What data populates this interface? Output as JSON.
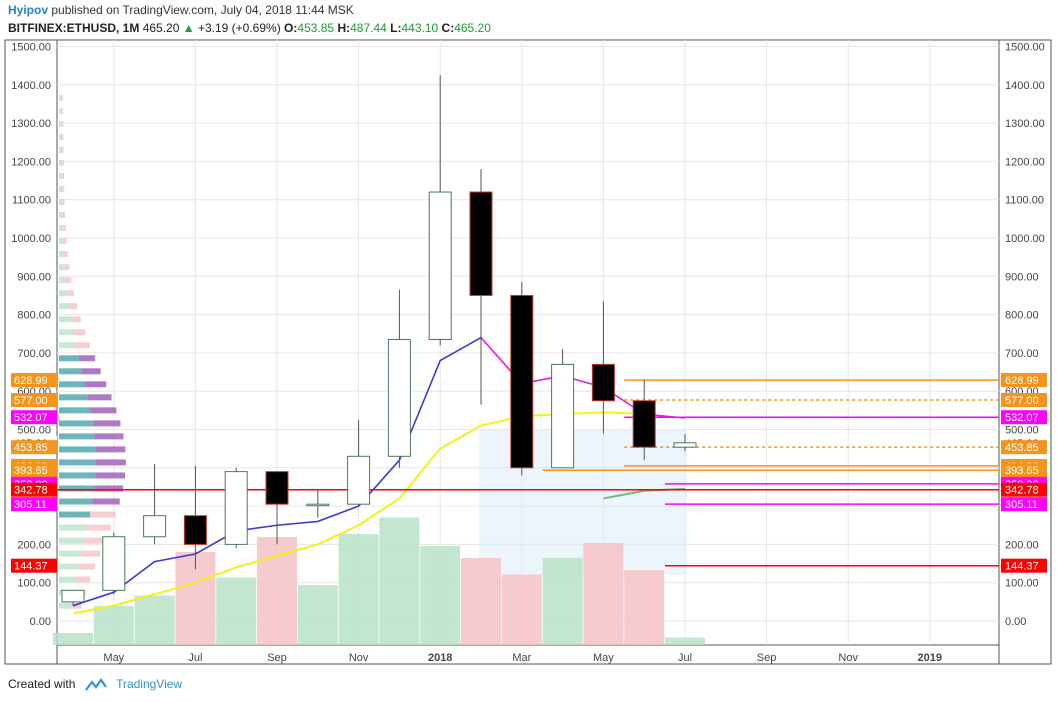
{
  "header": {
    "author": "Hyipov",
    "published_text": "published on TradingView.com, July 04, 2018 11:44 MSK",
    "symbol": "BITFINEX:ETHUSD, 1M",
    "last": "465.20",
    "change": "+3.19 (+0.69%)",
    "o_label": "O:",
    "o_value": "453.85",
    "h_label": "H:",
    "h_value": "487.44",
    "l_label": "L:",
    "l_value": "443.10",
    "c_label": "C:",
    "c_value": "465.20"
  },
  "footer": {
    "created_with": "Created with",
    "brand": "TradingView"
  },
  "colors": {
    "up_body": "#ffffff",
    "down_body": "#000000",
    "wick": "#555555",
    "up_border": "#4a7a5a",
    "down_border": "#c0392b",
    "vol_up": "#b9e2c9",
    "vol_down": "#f6c2c4",
    "ma_blue": "#3a3ad8",
    "ma_magenta": "#e020e0",
    "ma_yellow": "#f2f21a",
    "ma_green": "#7ab86e",
    "ma_lightblue": "#3aa5e0",
    "orange": "#f5941d",
    "magenta": "#ff00ff",
    "red": "#ff0000",
    "grid": "#e6e6e6"
  },
  "chart_data": {
    "type": "candlestick",
    "symbol": "BITFINEX:ETHUSD",
    "interval": "1M",
    "ylim": [
      -80,
      1520
    ],
    "y_ticks": [
      0,
      100,
      200,
      300,
      400,
      500,
      600,
      700,
      800,
      900,
      1000,
      1100,
      1200,
      1300,
      1400,
      1500
    ],
    "x_tick_labels": [
      "May",
      "Jul",
      "Sep",
      "Nov",
      "2018",
      "Mar",
      "May",
      "Jul",
      "Sep",
      "Nov",
      "2019"
    ],
    "x_tick_month_index": [
      1,
      3,
      5,
      7,
      9,
      11,
      13,
      15,
      17,
      19,
      21
    ],
    "bold_ticks": [
      "2018",
      "2019"
    ],
    "grid": true,
    "candles": [
      {
        "m": 0,
        "o": 50,
        "h": 80,
        "l": 40,
        "c": 80
      },
      {
        "m": 1,
        "o": 80,
        "h": 230,
        "l": 70,
        "c": 220
      },
      {
        "m": 2,
        "o": 220,
        "h": 410,
        "l": 200,
        "c": 275
      },
      {
        "m": 3,
        "o": 275,
        "h": 405,
        "l": 135,
        "c": 200
      },
      {
        "m": 4,
        "o": 200,
        "h": 400,
        "l": 190,
        "c": 390
      },
      {
        "m": 5,
        "o": 390,
        "h": 390,
        "l": 200,
        "c": 305
      },
      {
        "m": 6,
        "o": 305,
        "h": 345,
        "l": 270,
        "c": 305
      },
      {
        "m": 7,
        "o": 305,
        "h": 525,
        "l": 300,
        "c": 430
      },
      {
        "m": 8,
        "o": 430,
        "h": 865,
        "l": 400,
        "c": 735
      },
      {
        "m": 9,
        "o": 735,
        "h": 1425,
        "l": 720,
        "c": 1120
      },
      {
        "m": 10,
        "o": 1120,
        "h": 1180,
        "l": 565,
        "c": 850
      },
      {
        "m": 11,
        "o": 850,
        "h": 885,
        "l": 380,
        "c": 400
      },
      {
        "m": 12,
        "o": 400,
        "h": 710,
        "l": 400,
        "c": 670
      },
      {
        "m": 13,
        "o": 670,
        "h": 835,
        "l": 490,
        "c": 575
      },
      {
        "m": 14,
        "o": 575,
        "h": 630,
        "l": 420,
        "c": 453.85
      },
      {
        "m": 15,
        "o": 453.85,
        "h": 487.44,
        "l": 443.1,
        "c": 465.2
      }
    ],
    "volume_heights_norm": [
      0.08,
      0.26,
      0.33,
      0.62,
      0.45,
      0.72,
      0.4,
      0.74,
      0.85,
      0.66,
      0.58,
      0.47,
      0.58,
      0.68,
      0.5,
      0.05
    ],
    "ma_fast": [
      40,
      75,
      155,
      175,
      235,
      250,
      260,
      300,
      420,
      680,
      740,
      620,
      640,
      610,
      540,
      530
    ],
    "ma_slow": [
      20,
      40,
      70,
      100,
      140,
      170,
      200,
      250,
      320,
      450,
      510,
      535,
      540,
      545,
      540,
      null
    ],
    "ma_long": [
      null,
      null,
      null,
      null,
      null,
      null,
      null,
      null,
      null,
      null,
      null,
      null,
      null,
      320,
      340,
      345
    ],
    "levels": [
      {
        "value": 628.99,
        "label": "628.99",
        "color": "orange",
        "style": "solid",
        "from": 14
      },
      {
        "value": 577.0,
        "label": "577.00",
        "color": "orange",
        "style": "dotted",
        "from": 14
      },
      {
        "value": 532.07,
        "label": "532.07",
        "color": "magenta",
        "style": "solid",
        "from": 14
      },
      {
        "value": 465.2,
        "label": "465.20",
        "color": "white",
        "style": "dotted",
        "from": 14
      },
      {
        "value": 453.85,
        "label": "453.85",
        "color": "orange",
        "style": "dotted",
        "from": 14
      },
      {
        "value": 404.99,
        "label": "404.99",
        "color": "orange",
        "style": "solid",
        "from": 14
      },
      {
        "value": 393.65,
        "label": "393.65",
        "color": "orange",
        "style": "solid",
        "from": 12
      },
      {
        "value": 358.0,
        "label": "358.00",
        "color": "magenta",
        "style": "solid",
        "from": 15
      },
      {
        "value": 342.78,
        "label": "342.78",
        "color": "red",
        "style": "solid",
        "from": 0
      },
      {
        "value": 305.11,
        "label": "305.11",
        "color": "magenta",
        "style": "solid",
        "from": 15
      },
      {
        "value": 144.37,
        "label": "144.37",
        "color": "red",
        "style": "solid",
        "from": 15
      }
    ]
  }
}
